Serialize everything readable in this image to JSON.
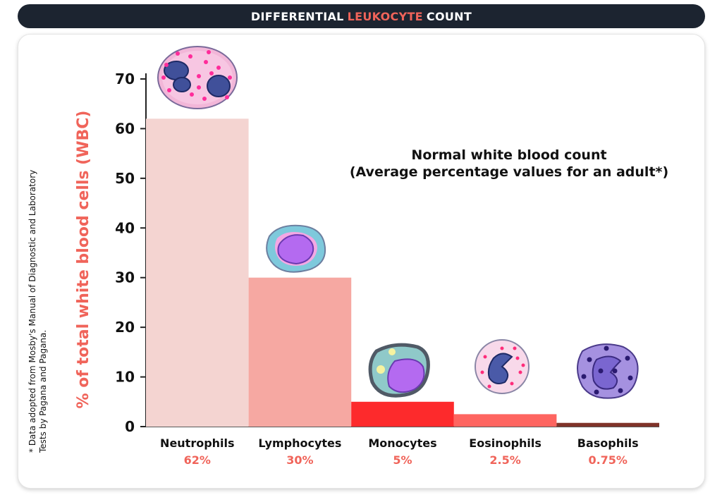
{
  "header": {
    "title_pre": "DIFFERENTIAL",
    "title_highlight": "LEUKOCYTE",
    "title_post": "COUNT"
  },
  "chart_data": {
    "type": "bar",
    "categories": [
      "Neutrophils",
      "Lymphocytes",
      "Monocytes",
      "Eosinophils",
      "Basophils"
    ],
    "values": [
      62,
      30,
      5,
      2.5,
      0.75
    ],
    "value_labels": [
      "62%",
      "30%",
      "5%",
      "2.5%",
      "0.75%"
    ],
    "bar_colors": [
      "#f4d4d1",
      "#f6a8a2",
      "#fd2a2c",
      "#fe6560",
      "#7f3329"
    ],
    "ylabel": "% of total white blood cells (WBC)",
    "ylim": [
      0,
      70
    ],
    "yticks": [
      0,
      10,
      20,
      30,
      40,
      50,
      60,
      70
    ],
    "annotation_line1": "Normal white blood count",
    "annotation_line2": "(Average percentage values for an adult*)",
    "footnote_line1": "* Data adopted from Mosby's Manual of Diagnostic  and Laboratory",
    "footnote_line2": "Tests by Pagana and Pagana.",
    "grid": false
  },
  "colors": {
    "accent": "#f0645a",
    "banner_bg": "#1c2430"
  }
}
